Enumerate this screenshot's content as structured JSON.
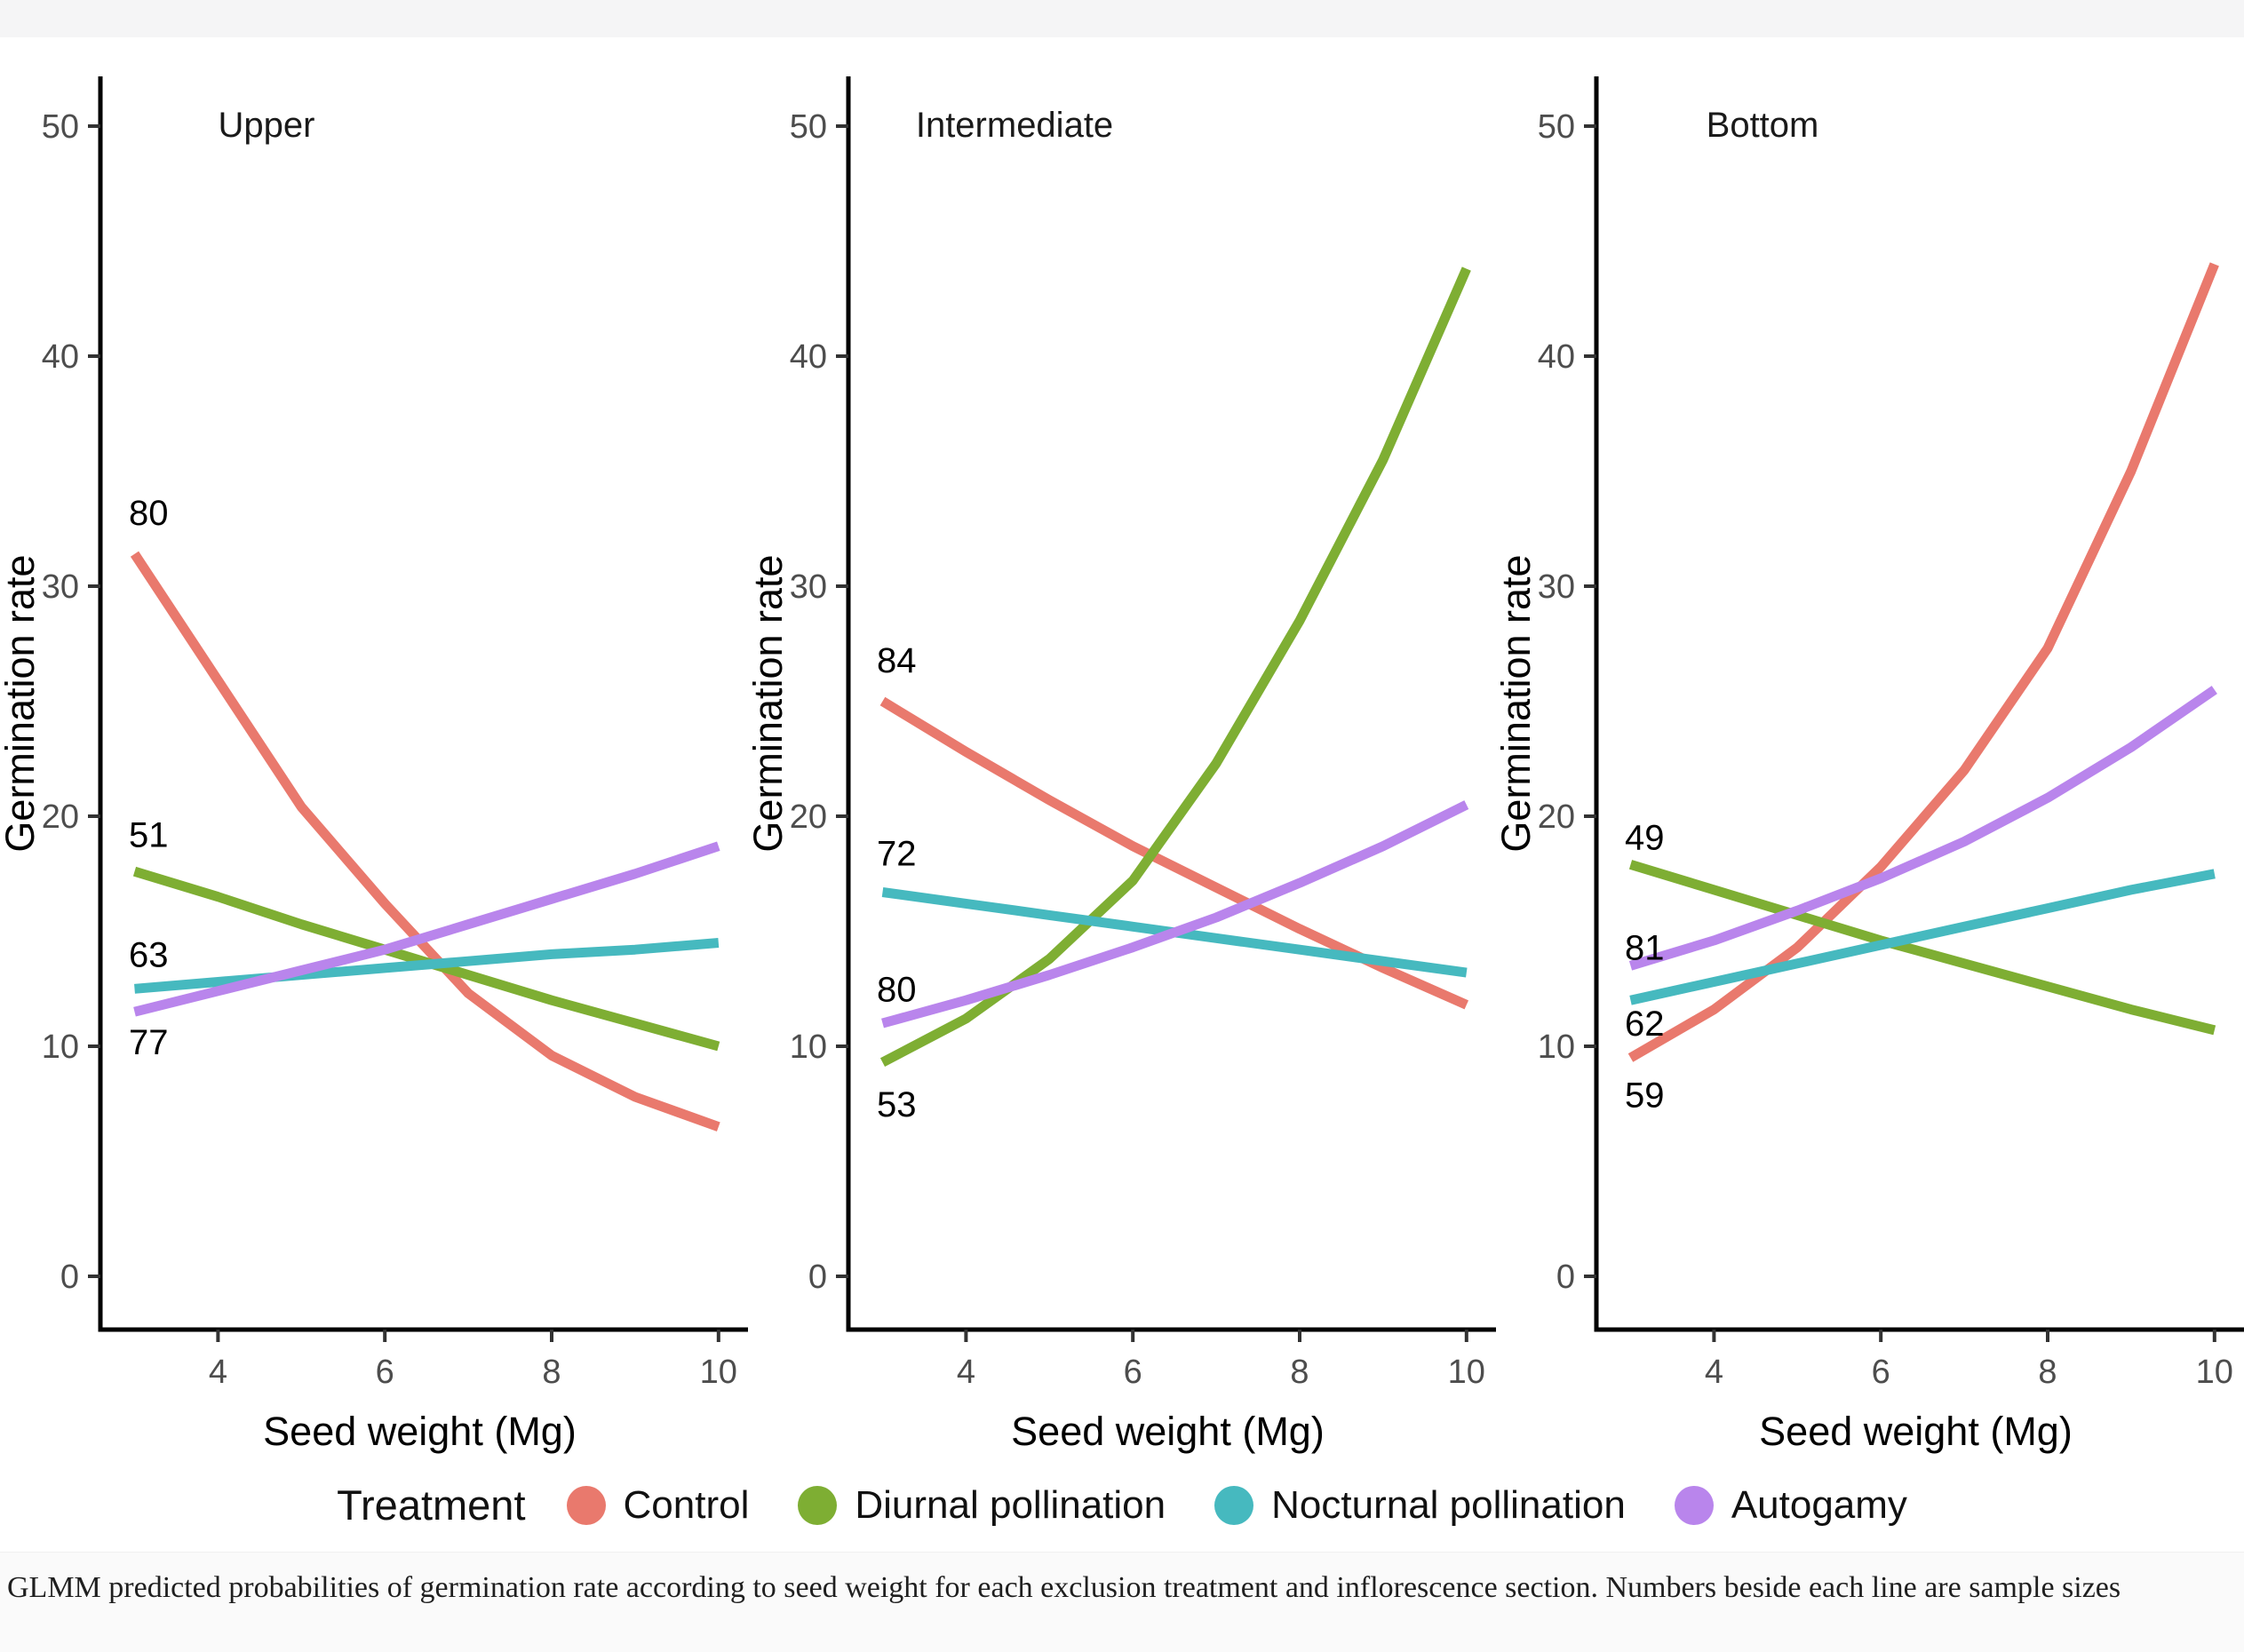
{
  "chart_data": {
    "type": "line",
    "xlabel": "Seed weight (Mg)",
    "ylabel": "Germination rate",
    "x": [
      3,
      4,
      5,
      6,
      7,
      8,
      9,
      10
    ],
    "xticks": [
      4,
      6,
      8,
      10
    ],
    "yticks": [
      0,
      10,
      20,
      30,
      40,
      50
    ],
    "xlim": [
      3,
      10
    ],
    "ylim": [
      0,
      50
    ],
    "grid": false,
    "legend_position": "bottom",
    "note": "Numbers beside each line are sample sizes",
    "panels": [
      {
        "title": "Upper",
        "series": [
          {
            "name": "Control",
            "sample_size": "80",
            "label_y": 33.2,
            "y": [
              31.4,
              25.9,
              20.4,
              16.2,
              12.3,
              9.6,
              7.8,
              6.5
            ]
          },
          {
            "name": "Diurnal pollination",
            "sample_size": "51",
            "label_y": 19.2,
            "y": [
              17.6,
              16.5,
              15.3,
              14.2,
              13.1,
              12.0,
              11.0,
              10.0
            ]
          },
          {
            "name": "Nocturnal pollination",
            "sample_size": "63",
            "label_y": 14.0,
            "y": [
              12.5,
              12.8,
              13.1,
              13.4,
              13.7,
              14.0,
              14.2,
              14.5
            ]
          },
          {
            "name": "Autogamy",
            "sample_size": "77",
            "label_y": 10.2,
            "y": [
              11.5,
              12.4,
              13.3,
              14.2,
              15.3,
              16.4,
              17.5,
              18.7
            ]
          }
        ]
      },
      {
        "title": "Intermediate",
        "series": [
          {
            "name": "Control",
            "sample_size": "84",
            "label_y": 26.8,
            "y": [
              25.0,
              22.8,
              20.7,
              18.7,
              16.9,
              15.1,
              13.4,
              11.8
            ]
          },
          {
            "name": "Diurnal pollination",
            "sample_size": "53",
            "label_y": 7.5,
            "y": [
              9.3,
              11.2,
              13.8,
              17.2,
              22.3,
              28.5,
              35.5,
              43.8
            ]
          },
          {
            "name": "Nocturnal pollination",
            "sample_size": "72",
            "label_y": 18.4,
            "y": [
              16.7,
              16.2,
              15.7,
              15.2,
              14.7,
              14.2,
              13.7,
              13.2
            ]
          },
          {
            "name": "Autogamy",
            "sample_size": "80",
            "label_y": 12.5,
            "y": [
              11.0,
              12.0,
              13.1,
              14.3,
              15.6,
              17.1,
              18.7,
              20.5
            ]
          }
        ]
      },
      {
        "title": "Bottom",
        "series": [
          {
            "name": "Control",
            "sample_size": "59",
            "label_y": 7.9,
            "y": [
              9.5,
              11.6,
              14.3,
              17.8,
              22.0,
              27.3,
              35.0,
              44.0
            ]
          },
          {
            "name": "Diurnal pollination",
            "sample_size": "49",
            "label_y": 19.1,
            "y": [
              17.9,
              16.8,
              15.7,
              14.6,
              13.6,
              12.6,
              11.6,
              10.7
            ]
          },
          {
            "name": "Nocturnal pollination",
            "sample_size": "62",
            "label_y": 11.0,
            "y": [
              12.0,
              12.8,
              13.6,
              14.4,
              15.2,
              16.0,
              16.8,
              17.5
            ]
          },
          {
            "name": "Autogamy",
            "sample_size": "81",
            "label_y": 14.3,
            "y": [
              13.5,
              14.6,
              15.9,
              17.3,
              18.9,
              20.8,
              23.0,
              25.5
            ]
          }
        ]
      }
    ]
  },
  "legend": {
    "title": "Treatment",
    "items": [
      {
        "label": "Control",
        "color": "#E9796D"
      },
      {
        "label": "Diurnal pollination",
        "color": "#7EAE33"
      },
      {
        "label": "Nocturnal pollination",
        "color": "#46B9BF"
      },
      {
        "label": "Autogamy",
        "color": "#B985EC"
      }
    ]
  },
  "colors": {
    "axis": "#000000",
    "tick_mark": "#333333",
    "tick_label": "#4d4d4d",
    "text": "#111111"
  },
  "caption": "GLMM predicted probabilities of germination rate according to seed weight for each exclusion treatment and inflorescence section. Numbers beside each line are sample sizes"
}
